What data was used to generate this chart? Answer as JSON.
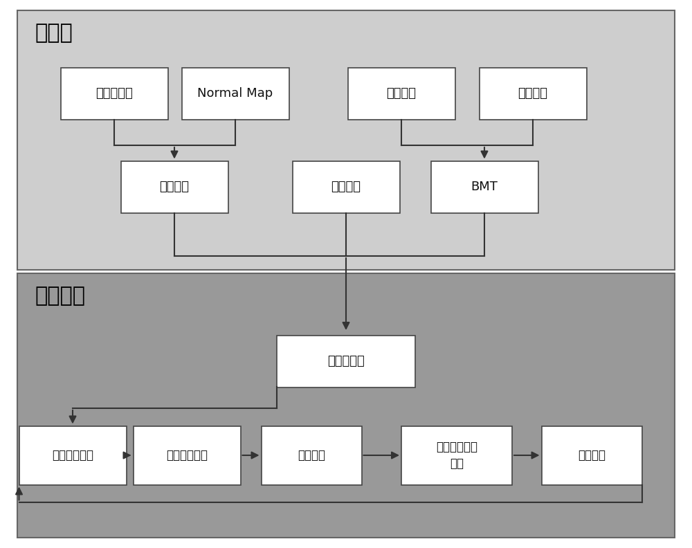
{
  "top_section_color": "#cecece",
  "bottom_section_color": "#999999",
  "box_color": "#ffffff",
  "box_edge_color": "#444444",
  "arrow_color": "#333333",
  "text_color": "#111111",
  "label_color": "#000000",
  "top_label": "预计算",
  "bottom_label": "实时模拟",
  "top_boxes_row1": [
    "漫反射纹理",
    "Normal Map",
    "材料密度",
    "扩散系数"
  ],
  "top_boxes_row2": [
    "燃烧纹理",
    "初始参数",
    "BMT"
  ],
  "middle_box": "模型点采样",
  "bottom_boxes": [
    "更新网格信息",
    "火焰扩散计算",
    "形变计算",
    "双重深度缓冲\n别除",
    "流体仿真"
  ],
  "fig_width": 10.0,
  "fig_height": 7.92,
  "dpi": 100
}
